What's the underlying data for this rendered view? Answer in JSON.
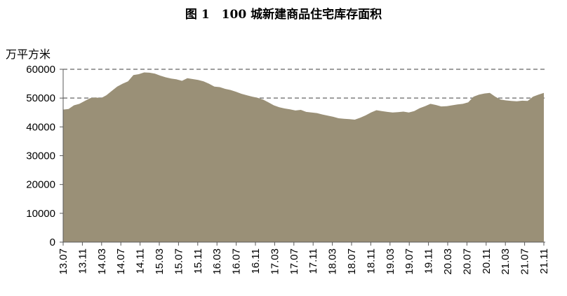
{
  "chart_data": {
    "type": "area",
    "title": "图 1　100 城新建商品住宅库存面积",
    "ylabel": "万平方米",
    "ylim": [
      0,
      60000
    ],
    "yticks": [
      "0",
      "10000",
      "20000",
      "30000",
      "40000",
      "50000",
      "60000"
    ],
    "grid": "dashed horizontal at 50000 and 60000",
    "fill_color": "#9a9077",
    "x_tick_labels": [
      "13.07",
      "13.11",
      "14.03",
      "14.07",
      "14.11",
      "15.03",
      "15.07",
      "15.11",
      "16.03",
      "16.07",
      "16.11",
      "17.03",
      "17.07",
      "17.11",
      "18.03",
      "18.07",
      "18.11",
      "19.03",
      "19.07",
      "19.11",
      "20.03",
      "20.07",
      "20.11",
      "21.03",
      "21.07",
      "21.11"
    ],
    "series": [
      {
        "values": [
          46000,
          46200,
          47500,
          48000,
          49000,
          50000,
          50200,
          50000,
          51000,
          52500,
          54000,
          55000,
          55800,
          58000,
          58300,
          58900,
          58800,
          58500,
          57800,
          57200,
          56800,
          56500,
          56000,
          56900,
          56600,
          56300,
          55800,
          55000,
          54000,
          53800,
          53200,
          52800,
          52200,
          51500,
          51000,
          50500,
          50100,
          49500,
          48500,
          47500,
          46800,
          46400,
          46100,
          45700,
          45900,
          45200,
          45000,
          44800,
          44300,
          43900,
          43500,
          43000,
          42800,
          42700,
          42500,
          43200,
          44000,
          45000,
          45800,
          45500,
          45200,
          45000,
          45100,
          45300,
          45000,
          45500,
          46500,
          47200,
          48000,
          47600,
          47100,
          47200,
          47500,
          47800,
          48000,
          48500,
          50500,
          51200,
          51600,
          51800,
          50500,
          49500,
          49200,
          49000,
          48900,
          49100,
          49000,
          50500,
          51200,
          51800
        ]
      }
    ]
  }
}
